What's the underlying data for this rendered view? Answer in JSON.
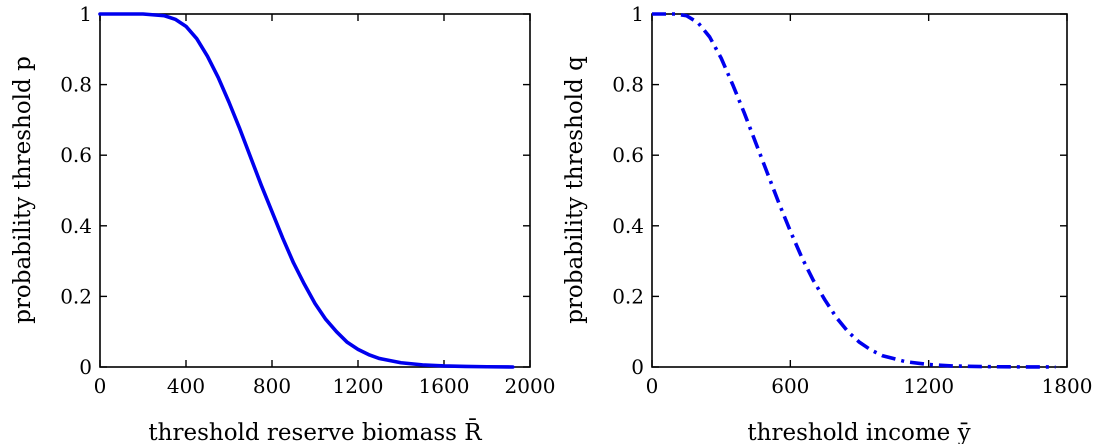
{
  "chart_data": [
    {
      "type": "line",
      "xlabel": "threshold reserve biomass R̄",
      "ylabel": "probability threshold p",
      "xlim": [
        0,
        2000
      ],
      "ylim": [
        0,
        1
      ],
      "xticks": [
        "0",
        "400",
        "800",
        "1200",
        "1600",
        "2000"
      ],
      "yticks": [
        "0",
        "0.2",
        "0.4",
        "0.6",
        "0.8",
        "1"
      ],
      "grid": false,
      "series": [
        {
          "line_style": "solid",
          "color": "#0000ee",
          "x": [
            0,
            100,
            200,
            300,
            350,
            400,
            450,
            500,
            550,
            600,
            650,
            700,
            750,
            800,
            850,
            900,
            950,
            1000,
            1050,
            1100,
            1150,
            1200,
            1250,
            1300,
            1400,
            1500,
            1600,
            1700,
            1800,
            1920
          ],
          "y": [
            1.0,
            1.0,
            1.0,
            0.995,
            0.985,
            0.965,
            0.93,
            0.88,
            0.82,
            0.75,
            0.675,
            0.595,
            0.515,
            0.44,
            0.365,
            0.295,
            0.235,
            0.18,
            0.135,
            0.1,
            0.07,
            0.05,
            0.035,
            0.024,
            0.012,
            0.006,
            0.003,
            0.0015,
            0.0007,
            0.0
          ]
        }
      ]
    },
    {
      "type": "line",
      "xlabel": "threshold income ȳ",
      "ylabel": "probability threshold q",
      "xlim": [
        0,
        1800
      ],
      "ylim": [
        0,
        1
      ],
      "xticks": [
        "0",
        "600",
        "1200",
        "1800"
      ],
      "yticks": [
        "0",
        "0.2",
        "0.4",
        "0.6",
        "0.8",
        "1"
      ],
      "grid": false,
      "series": [
        {
          "line_style": "dashdot",
          "color": "#0000ee",
          "x": [
            0,
            100,
            150,
            200,
            250,
            300,
            350,
            400,
            450,
            500,
            550,
            600,
            650,
            700,
            750,
            800,
            850,
            900,
            950,
            1000,
            1100,
            1200,
            1300,
            1400,
            1500,
            1600,
            1750
          ],
          "y": [
            1.0,
            1.0,
            0.995,
            0.975,
            0.935,
            0.875,
            0.8,
            0.72,
            0.635,
            0.55,
            0.465,
            0.385,
            0.31,
            0.245,
            0.19,
            0.14,
            0.1,
            0.07,
            0.048,
            0.032,
            0.015,
            0.007,
            0.003,
            0.0015,
            0.0007,
            0.0003,
            0.0
          ]
        }
      ]
    }
  ]
}
